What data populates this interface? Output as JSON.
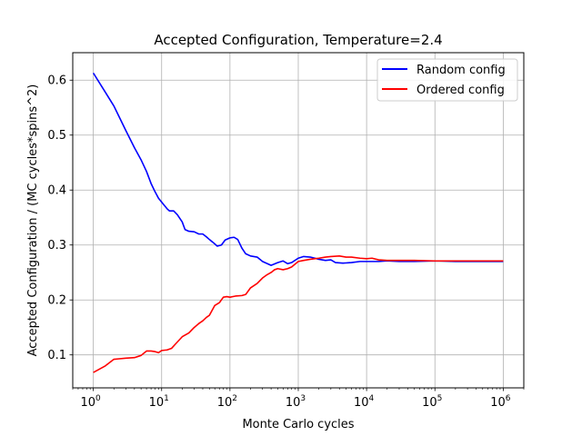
{
  "chart_data": {
    "type": "line",
    "title": "Accepted Configuration, Temperature=2.4",
    "xlabel": "Monte Carlo cycles",
    "ylabel": "Accepted Configuration / (MC cycles*spins^2)",
    "xscale": "log",
    "xlim": [
      0.5,
      2000000
    ],
    "ylim": [
      0.04,
      0.65
    ],
    "x_ticks": [
      {
        "value": 1,
        "base": "10",
        "exp": "0"
      },
      {
        "value": 10,
        "base": "10",
        "exp": "1"
      },
      {
        "value": 100,
        "base": "10",
        "exp": "2"
      },
      {
        "value": 1000,
        "base": "10",
        "exp": "3"
      },
      {
        "value": 10000,
        "base": "10",
        "exp": "4"
      },
      {
        "value": 100000,
        "base": "10",
        "exp": "5"
      },
      {
        "value": 1000000,
        "base": "10",
        "exp": "6"
      }
    ],
    "y_ticks": [
      {
        "value": 0.1,
        "label": "0.1"
      },
      {
        "value": 0.2,
        "label": "0.2"
      },
      {
        "value": 0.3,
        "label": "0.3"
      },
      {
        "value": 0.4,
        "label": "0.4"
      },
      {
        "value": 0.5,
        "label": "0.5"
      },
      {
        "value": 0.6,
        "label": "0.6"
      }
    ],
    "grid": true,
    "legend_position": "top-right",
    "series": [
      {
        "name": "Random config",
        "color": "#0000ff",
        "points": [
          [
            1,
            0.613
          ],
          [
            1.5,
            0.578
          ],
          [
            2,
            0.553
          ],
          [
            3,
            0.508
          ],
          [
            4,
            0.477
          ],
          [
            5,
            0.455
          ],
          [
            6,
            0.434
          ],
          [
            7,
            0.412
          ],
          [
            8,
            0.397
          ],
          [
            9,
            0.385
          ],
          [
            10,
            0.378
          ],
          [
            12,
            0.366
          ],
          [
            13,
            0.362
          ],
          [
            15,
            0.362
          ],
          [
            17,
            0.355
          ],
          [
            20,
            0.342
          ],
          [
            22,
            0.328
          ],
          [
            25,
            0.325
          ],
          [
            30,
            0.324
          ],
          [
            35,
            0.32
          ],
          [
            40,
            0.32
          ],
          [
            45,
            0.315
          ],
          [
            50,
            0.31
          ],
          [
            60,
            0.302
          ],
          [
            65,
            0.298
          ],
          [
            75,
            0.3
          ],
          [
            85,
            0.309
          ],
          [
            100,
            0.313
          ],
          [
            115,
            0.314
          ],
          [
            130,
            0.31
          ],
          [
            150,
            0.294
          ],
          [
            170,
            0.284
          ],
          [
            200,
            0.28
          ],
          [
            250,
            0.278
          ],
          [
            300,
            0.27
          ],
          [
            400,
            0.263
          ],
          [
            500,
            0.268
          ],
          [
            600,
            0.271
          ],
          [
            700,
            0.266
          ],
          [
            800,
            0.268
          ],
          [
            1000,
            0.276
          ],
          [
            1200,
            0.279
          ],
          [
            1500,
            0.278
          ],
          [
            2000,
            0.274
          ],
          [
            2500,
            0.272
          ],
          [
            3000,
            0.273
          ],
          [
            3500,
            0.268
          ],
          [
            4500,
            0.267
          ],
          [
            6000,
            0.268
          ],
          [
            8000,
            0.27
          ],
          [
            10000,
            0.27
          ],
          [
            15000,
            0.27
          ],
          [
            20000,
            0.271
          ],
          [
            30000,
            0.27
          ],
          [
            50000,
            0.27
          ],
          [
            100000,
            0.271
          ],
          [
            200000,
            0.27
          ],
          [
            500000,
            0.27
          ],
          [
            1000000,
            0.27
          ]
        ]
      },
      {
        "name": "Ordered config",
        "color": "#ff0000",
        "points": [
          [
            1,
            0.068
          ],
          [
            1.5,
            0.08
          ],
          [
            2,
            0.092
          ],
          [
            3,
            0.094
          ],
          [
            4,
            0.095
          ],
          [
            5,
            0.099
          ],
          [
            6,
            0.107
          ],
          [
            7,
            0.107
          ],
          [
            8,
            0.106
          ],
          [
            9,
            0.104
          ],
          [
            10,
            0.108
          ],
          [
            12,
            0.109
          ],
          [
            14,
            0.112
          ],
          [
            16,
            0.12
          ],
          [
            20,
            0.133
          ],
          [
            25,
            0.14
          ],
          [
            30,
            0.15
          ],
          [
            35,
            0.157
          ],
          [
            40,
            0.162
          ],
          [
            45,
            0.168
          ],
          [
            50,
            0.172
          ],
          [
            60,
            0.19
          ],
          [
            70,
            0.195
          ],
          [
            80,
            0.205
          ],
          [
            90,
            0.206
          ],
          [
            100,
            0.205
          ],
          [
            120,
            0.207
          ],
          [
            150,
            0.208
          ],
          [
            170,
            0.21
          ],
          [
            200,
            0.222
          ],
          [
            250,
            0.23
          ],
          [
            300,
            0.24
          ],
          [
            350,
            0.246
          ],
          [
            400,
            0.25
          ],
          [
            450,
            0.255
          ],
          [
            500,
            0.257
          ],
          [
            600,
            0.255
          ],
          [
            700,
            0.257
          ],
          [
            800,
            0.26
          ],
          [
            1000,
            0.27
          ],
          [
            1200,
            0.272
          ],
          [
            1500,
            0.274
          ],
          [
            2000,
            0.276
          ],
          [
            2500,
            0.278
          ],
          [
            3000,
            0.279
          ],
          [
            4000,
            0.28
          ],
          [
            5000,
            0.278
          ],
          [
            6000,
            0.278
          ],
          [
            8000,
            0.276
          ],
          [
            10000,
            0.275
          ],
          [
            12000,
            0.276
          ],
          [
            15000,
            0.273
          ],
          [
            20000,
            0.272
          ],
          [
            30000,
            0.272
          ],
          [
            50000,
            0.272
          ],
          [
            100000,
            0.271
          ],
          [
            200000,
            0.271
          ],
          [
            500000,
            0.271
          ],
          [
            1000000,
            0.271
          ]
        ]
      }
    ]
  }
}
